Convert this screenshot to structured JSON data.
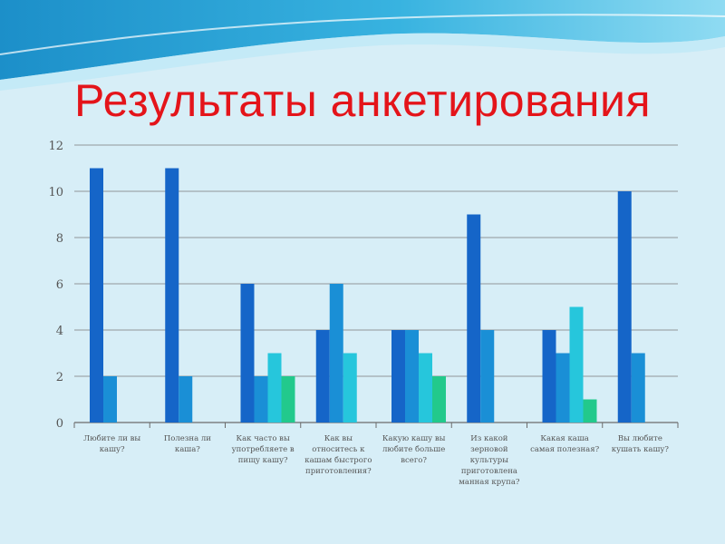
{
  "title": "Результаты анкетирования",
  "colors": {
    "background": "#d7eef7",
    "title": "#e4141a",
    "series": [
      "#1565c8",
      "#1a8fd6",
      "#26c6dc",
      "#22c98c"
    ]
  },
  "chart_data": {
    "type": "bar",
    "title": "",
    "xlabel": "",
    "ylabel": "",
    "ylim": [
      0,
      12
    ],
    "yticks": [
      "0",
      "2",
      "4",
      "6",
      "8",
      "10",
      "12"
    ],
    "grid": true,
    "categories": [
      "Любите ли вы кашу?",
      "Полезна ли каша?",
      "Как часто вы употребляете в пищу кашу?",
      "Как вы относитесь к кашам быстрого приготовления?",
      "Какую кашу вы любите больше всего?",
      "Из какой зерновой культуры приготовлена манная крупа?",
      "Какая каша самая полезная?",
      "Вы любите кушать кашу?"
    ],
    "series": [
      {
        "values": [
          11,
          11,
          6,
          4,
          4,
          9,
          4,
          10
        ]
      },
      {
        "values": [
          2,
          2,
          2,
          6,
          4,
          4,
          3,
          3
        ]
      },
      {
        "values": [
          null,
          null,
          3,
          3,
          3,
          null,
          5,
          null
        ]
      },
      {
        "values": [
          null,
          null,
          2,
          null,
          2,
          null,
          1,
          null
        ]
      }
    ]
  }
}
